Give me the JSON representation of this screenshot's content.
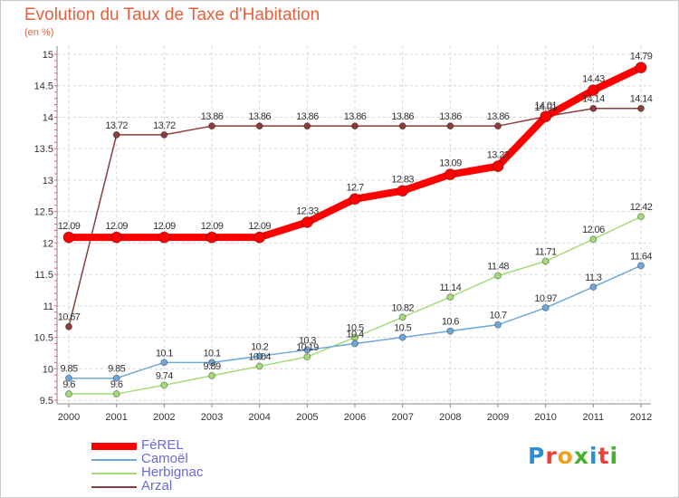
{
  "header": {
    "title": "Evolution du Taux de Taxe d'Habitation",
    "subtitle": "(en %)"
  },
  "brand": {
    "text": "Proxiti",
    "letters": [
      "P",
      "r",
      "o",
      "x",
      "i",
      "t",
      "i"
    ],
    "letter_colors": [
      "#2a8fd8",
      "#e8403a",
      "#f0a020",
      "#48b030",
      "#2a8fd8",
      "#e8403a",
      "#48b030"
    ]
  },
  "chart_data": {
    "type": "line",
    "title": "Evolution du Taux de Taxe d'Habitation",
    "subtitle": "(en %)",
    "xlabel": "",
    "ylabel": "",
    "x": [
      "2000",
      "2001",
      "2002",
      "2003",
      "2004",
      "2005",
      "2006",
      "2007",
      "2008",
      "2009",
      "2010",
      "2011",
      "2012"
    ],
    "ylim": [
      9.5,
      15
    ],
    "yticks": [
      "9.5",
      "10",
      "10.5",
      "11",
      "11.5",
      "12",
      "12.5",
      "13",
      "13.5",
      "14",
      "14.5",
      "15"
    ],
    "grid": true,
    "legend_position": "bottom-left",
    "series": [
      {
        "name": "FéREL",
        "color": "#ff0000",
        "values": [
          12.09,
          12.09,
          12.09,
          12.09,
          12.09,
          12.33,
          12.7,
          12.83,
          13.09,
          13.22,
          14.01,
          14.43,
          14.79
        ],
        "labels": [
          "12.09",
          "12.09",
          "12.09",
          "12.09",
          "12.09",
          "12.33",
          "12.7",
          "12.83",
          "13.09",
          "13.22",
          "14.01",
          "14.43",
          "14.79"
        ]
      },
      {
        "name": "Camoël",
        "color": "#6fa8dc",
        "values": [
          9.85,
          9.85,
          10.1,
          10.1,
          10.2,
          10.3,
          10.4,
          10.5,
          10.6,
          10.7,
          10.97,
          11.3,
          11.64
        ],
        "labels": [
          "9.85",
          "9.85",
          "10.1",
          "10.1",
          "10.2",
          "10.3",
          "10.4",
          "10.5",
          "10.6",
          "10.7",
          "10.97",
          "11.3",
          "11.64"
        ]
      },
      {
        "name": "Herbignac",
        "color": "#a4dc78",
        "values": [
          9.6,
          9.6,
          9.74,
          9.89,
          10.04,
          10.19,
          10.5,
          10.82,
          11.14,
          11.48,
          11.71,
          12.06,
          12.42
        ],
        "labels": [
          "9.6",
          "9.6",
          "9.74",
          "9.89",
          "10.04",
          "10.19",
          "10.5",
          "10.82",
          "11.14",
          "11.48",
          "11.71",
          "12.06",
          "12.42"
        ]
      },
      {
        "name": "Arzal",
        "color": "#8c3c3c",
        "values": [
          10.67,
          13.72,
          13.72,
          13.86,
          13.86,
          13.86,
          13.86,
          13.86,
          13.86,
          13.86,
          14.01,
          14.14,
          14.14
        ],
        "labels": [
          "10.67",
          "13.72",
          "13.72",
          "13.86",
          "13.86",
          "13.86",
          "13.86",
          "13.86",
          "13.86",
          "13.86",
          "14.01",
          "14.14",
          "14.14"
        ]
      }
    ]
  }
}
